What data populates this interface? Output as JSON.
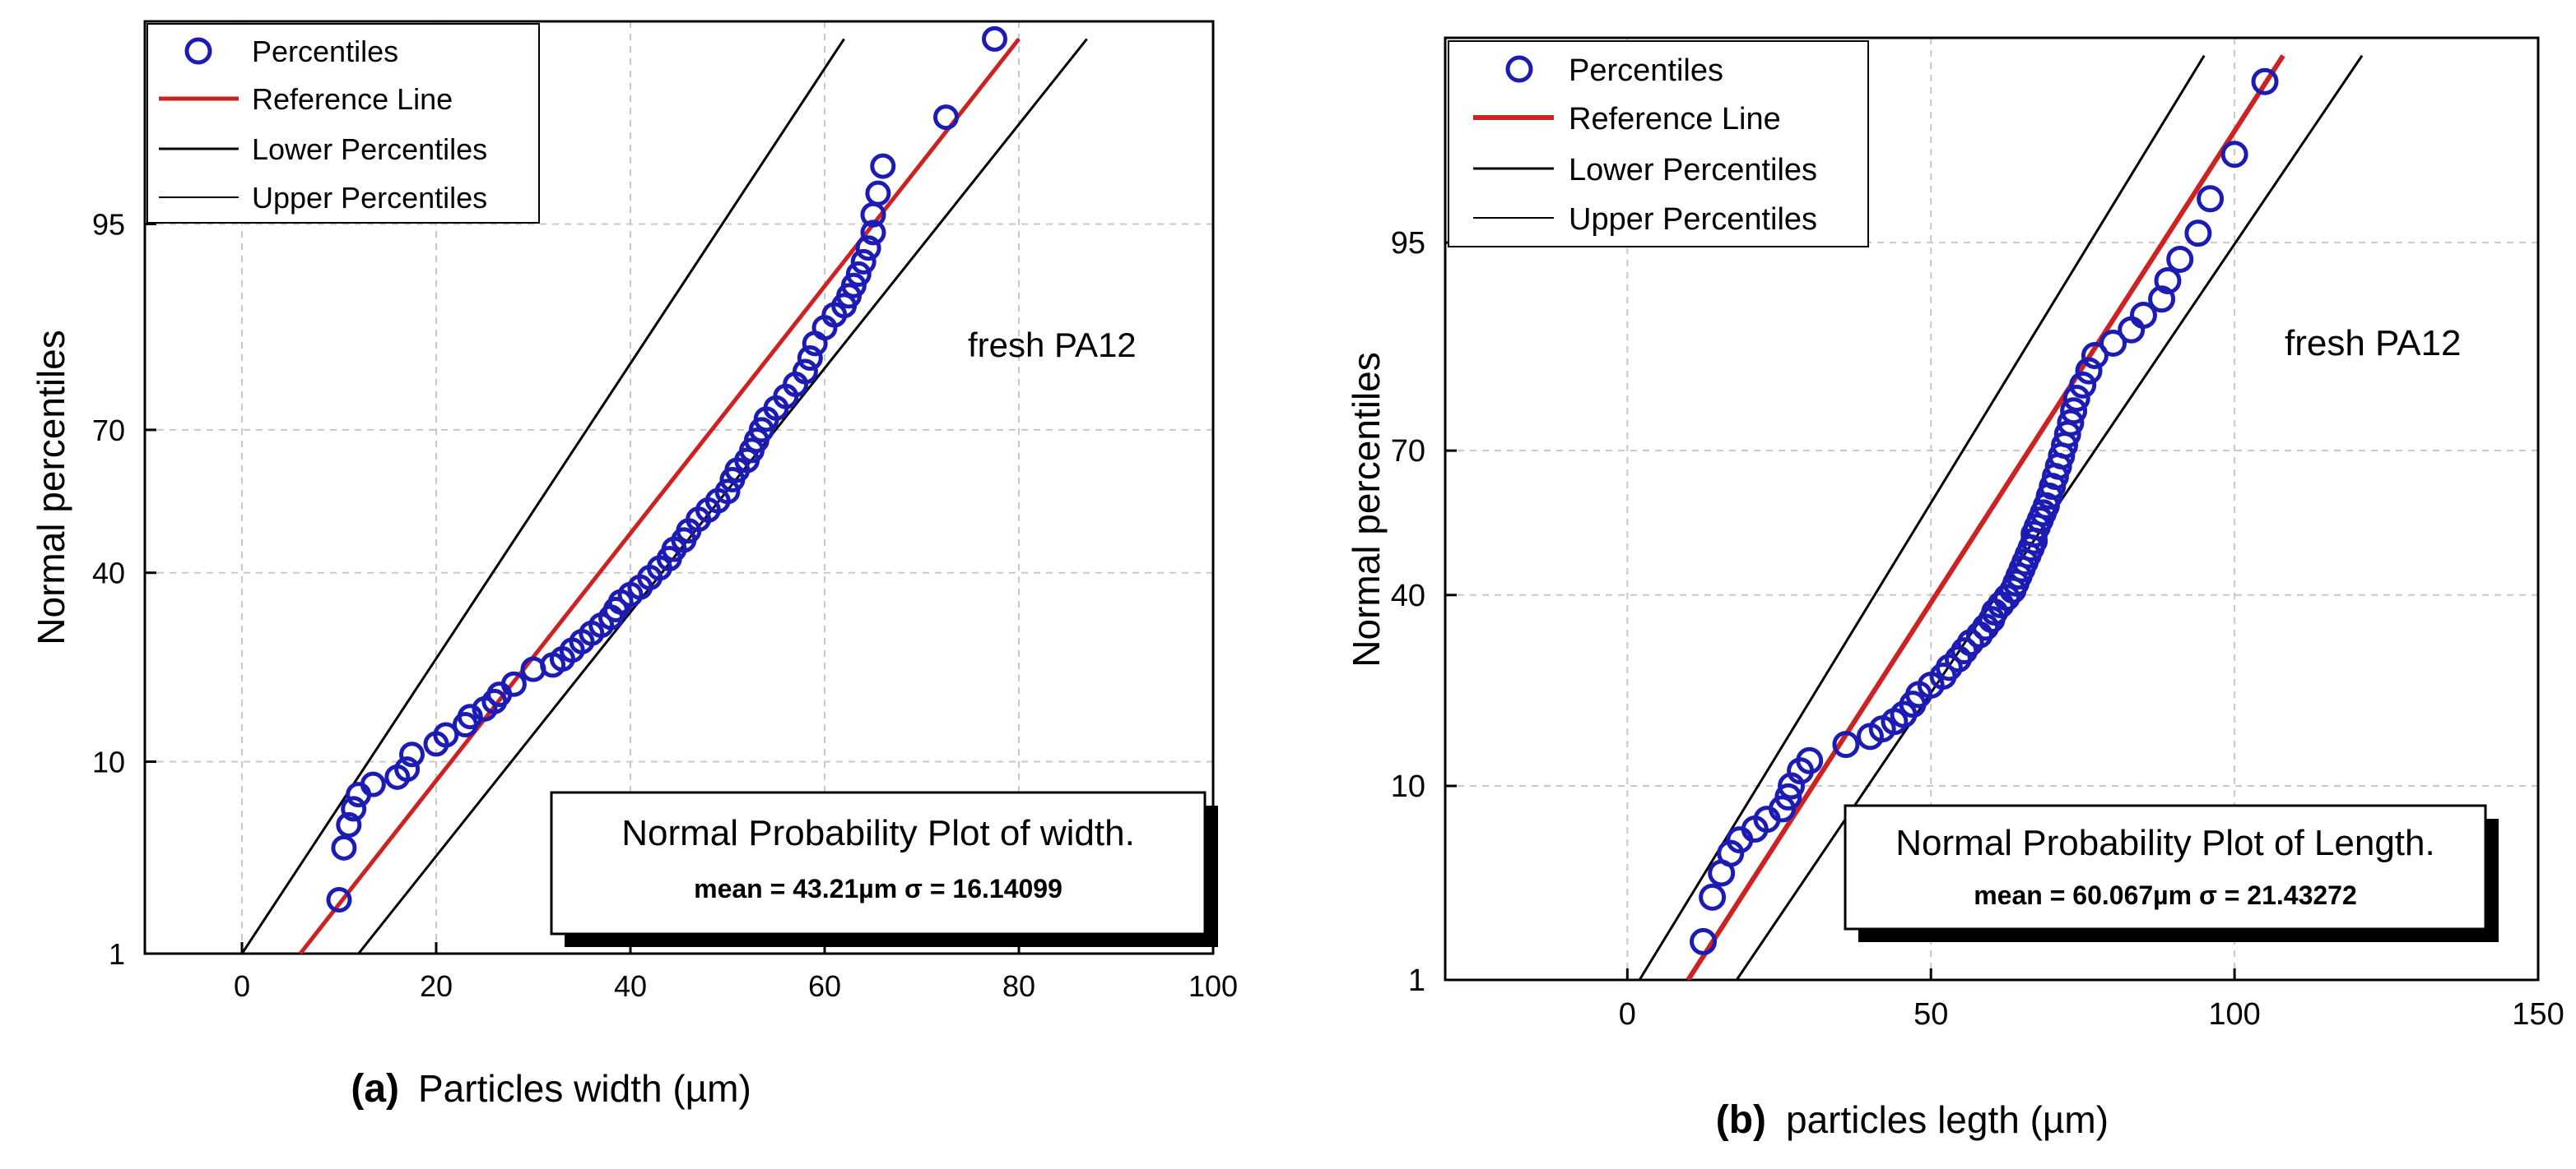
{
  "chart_data": [
    {
      "type": "scatter",
      "panel_label": "(a)",
      "xlabel": "Particles width (µm)",
      "ylabel": "Normal percentiles",
      "annotation": "fresh PA12",
      "box_title": "Normal Probability Plot of width.",
      "box_stats": "mean = 43.21µm  σ = 16.14099",
      "xlim": [
        -10,
        100
      ],
      "xticks": [
        0,
        20,
        40,
        60,
        80,
        100
      ],
      "yticks": [
        1,
        10,
        40,
        70,
        95
      ],
      "grid": true,
      "legend_position": "top-left",
      "legend": [
        "Percentiles",
        "Reference Line",
        "Lower Percentiles",
        "Upper Percentiles"
      ],
      "colors": {
        "points": "#1c1cb4",
        "reference": "#cc2222",
        "bounds": "#000000"
      },
      "reference_line": [
        [
          6.0,
          1.0
        ],
        [
          80.0,
          99.6
        ]
      ],
      "lower_percentiles": [
        [
          0.0,
          1.0
        ],
        [
          62.0,
          99.6
        ]
      ],
      "upper_percentiles": [
        [
          12.0,
          1.0
        ],
        [
          87.0,
          99.6
        ]
      ],
      "points": [
        [
          10,
          2.1
        ],
        [
          10.5,
          4
        ],
        [
          11,
          5.2
        ],
        [
          11.5,
          6.2
        ],
        [
          12,
          7.2
        ],
        [
          13.5,
          8
        ],
        [
          16,
          8.6
        ],
        [
          17,
          9.3
        ],
        [
          17.5,
          10.7
        ],
        [
          20,
          11.8
        ],
        [
          21,
          12.8
        ],
        [
          23,
          14
        ],
        [
          23.5,
          15
        ],
        [
          25,
          16
        ],
        [
          26,
          17
        ],
        [
          26.5,
          18
        ],
        [
          28,
          19.5
        ],
        [
          30,
          21.8
        ],
        [
          32,
          22.5
        ],
        [
          33,
          23.5
        ],
        [
          34,
          25
        ],
        [
          35,
          26.5
        ],
        [
          36,
          28
        ],
        [
          37,
          29.5
        ],
        [
          38,
          31
        ],
        [
          38.5,
          32.5
        ],
        [
          39,
          34
        ],
        [
          40,
          35.5
        ],
        [
          41,
          37
        ],
        [
          42,
          39
        ],
        [
          43,
          41
        ],
        [
          44,
          43
        ],
        [
          44.5,
          45
        ],
        [
          45.5,
          47
        ],
        [
          46,
          49
        ],
        [
          47,
          51.5
        ],
        [
          48,
          53.5
        ],
        [
          49,
          55.5
        ],
        [
          50,
          57.5
        ],
        [
          50.5,
          60
        ],
        [
          51,
          62
        ],
        [
          52,
          64
        ],
        [
          52.5,
          66
        ],
        [
          53,
          68
        ],
        [
          53.5,
          70
        ],
        [
          54,
          72
        ],
        [
          55,
          74
        ],
        [
          56,
          76
        ],
        [
          57,
          78
        ],
        [
          58,
          80
        ],
        [
          58.5,
          82
        ],
        [
          59,
          84
        ],
        [
          60,
          86
        ],
        [
          61,
          87.5
        ],
        [
          62,
          88.5
        ],
        [
          62.5,
          89.5
        ],
        [
          63,
          90.5
        ],
        [
          63.5,
          91.5
        ],
        [
          64,
          92.5
        ],
        [
          64.5,
          93.5
        ],
        [
          65,
          94.5
        ],
        [
          65,
          95.5
        ],
        [
          65.5,
          96.5
        ],
        [
          66,
          97.5
        ],
        [
          72.5,
          98.7
        ],
        [
          77.5,
          99.6
        ]
      ]
    },
    {
      "type": "scatter",
      "panel_label": "(b)",
      "xlabel": "particles legth (µm)",
      "ylabel": "Normal percentiles",
      "annotation": "fresh PA12",
      "box_title": "Normal Probability Plot of Length.",
      "box_stats": "mean = 60.067µm  σ = 21.43272",
      "xlim": [
        -30,
        150
      ],
      "xticks": [
        0,
        50,
        100,
        150
      ],
      "yticks": [
        1,
        10,
        40,
        70,
        95
      ],
      "grid": true,
      "legend_position": "top-left",
      "legend": [
        "Percentiles",
        "Reference Line",
        "Lower Percentiles",
        "Upper Percentiles"
      ],
      "colors": {
        "points": "#1c1cb4",
        "reference": "#cc2222",
        "bounds": "#000000"
      },
      "reference_line": [
        [
          10.0,
          1.0
        ],
        [
          108.0,
          99.6
        ]
      ],
      "lower_percentiles": [
        [
          2.0,
          1.0
        ],
        [
          95.0,
          99.6
        ]
      ],
      "upper_percentiles": [
        [
          18.0,
          1.0
        ],
        [
          121.0,
          99.6
        ]
      ],
      "points": [
        [
          12.5,
          1.7
        ],
        [
          14,
          3
        ],
        [
          15.5,
          4
        ],
        [
          17,
          5
        ],
        [
          18.5,
          5.8
        ],
        [
          21,
          6.5
        ],
        [
          23,
          7.2
        ],
        [
          25.5,
          8
        ],
        [
          26.5,
          9
        ],
        [
          27,
          10
        ],
        [
          28.5,
          11.5
        ],
        [
          30,
          12.6
        ],
        [
          36,
          14.5
        ],
        [
          40,
          15.5
        ],
        [
          42,
          16.5
        ],
        [
          44,
          17.5
        ],
        [
          45.5,
          18.5
        ],
        [
          47,
          20
        ],
        [
          48,
          21.5
        ],
        [
          50,
          23
        ],
        [
          52,
          24.5
        ],
        [
          53,
          26
        ],
        [
          54.5,
          27.5
        ],
        [
          55.5,
          29
        ],
        [
          56.5,
          30.5
        ],
        [
          58,
          32
        ],
        [
          59,
          33.5
        ],
        [
          60,
          35
        ],
        [
          60.5,
          36.5
        ],
        [
          61.5,
          38
        ],
        [
          62.5,
          39.5
        ],
        [
          63.5,
          41
        ],
        [
          64,
          42.5
        ],
        [
          64.5,
          44
        ],
        [
          65,
          45.5
        ],
        [
          65.5,
          47
        ],
        [
          66,
          48.5
        ],
        [
          66.5,
          50
        ],
        [
          67,
          51.5
        ],
        [
          67,
          53
        ],
        [
          67.5,
          54.5
        ],
        [
          68,
          56
        ],
        [
          68.5,
          57.5
        ],
        [
          69,
          59
        ],
        [
          69.5,
          61
        ],
        [
          70,
          63
        ],
        [
          70.5,
          65
        ],
        [
          71,
          67
        ],
        [
          71.5,
          69
        ],
        [
          72,
          71
        ],
        [
          72.5,
          73
        ],
        [
          73,
          75
        ],
        [
          73.5,
          77
        ],
        [
          74,
          79
        ],
        [
          75,
          81
        ],
        [
          76,
          83
        ],
        [
          77,
          85
        ],
        [
          80,
          86.5
        ],
        [
          83,
          88
        ],
        [
          85,
          89.5
        ],
        [
          88,
          91
        ],
        [
          89,
          92.5
        ],
        [
          91,
          94
        ],
        [
          94,
          95.5
        ],
        [
          96,
          97
        ],
        [
          100,
          98.3
        ],
        [
          105,
          99.4
        ]
      ]
    }
  ]
}
